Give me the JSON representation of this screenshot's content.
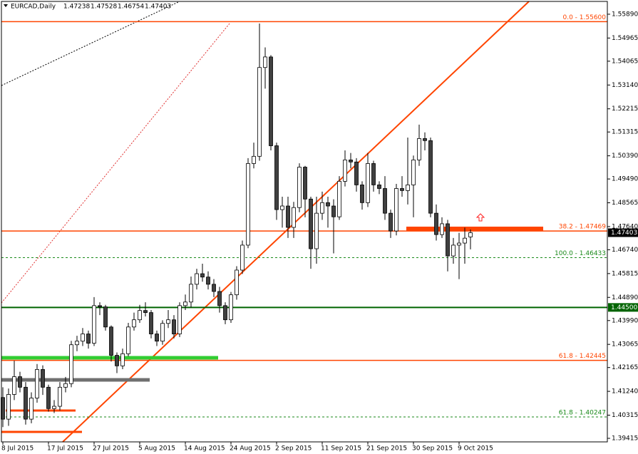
{
  "chart_data": {
    "type": "candlestick",
    "title": "EURCAD,Daily",
    "categories": [
      "8 Jul 2015",
      null,
      null,
      null,
      null,
      null,
      null,
      null,
      "17 Jul 2015",
      null,
      null,
      null,
      null,
      null,
      null,
      null,
      "27 Jul 2015",
      null,
      null,
      null,
      null,
      null,
      null,
      null,
      "5 Aug 2015",
      null,
      null,
      null,
      null,
      null,
      null,
      null,
      "14 Aug 2015",
      null,
      null,
      null,
      null,
      null,
      null,
      null,
      "24 Aug 2015",
      null,
      null,
      null,
      null,
      null,
      null,
      null,
      "2 Sep 2015",
      null,
      null,
      null,
      null,
      null,
      null,
      null,
      "11 Sep 2015",
      null,
      null,
      null,
      null,
      null,
      null,
      null,
      "21 Sep 2015",
      null,
      null,
      null,
      null,
      null,
      null,
      null,
      "30 Sep 2015",
      null,
      null,
      null,
      null,
      null,
      null,
      null,
      "9 Oct 2015",
      null,
      null
    ],
    "open": [
      1.41,
      1.4016,
      1.4112,
      1.4181,
      1.414,
      1.4016,
      1.4098,
      1.4209,
      1.414,
      1.4057,
      1.4066,
      1.414,
      1.4154,
      1.4305,
      1.4319,
      1.4347,
      1.4311,
      1.4457,
      1.4452,
      1.4374,
      1.4264,
      1.4223,
      1.427,
      1.4374,
      1.4402,
      1.4438,
      1.443,
      1.4347,
      1.4319,
      1.4388,
      1.4402,
      1.4347,
      1.4457,
      1.4471,
      1.454,
      1.4581,
      1.4568,
      1.454,
      1.4512,
      1.4457,
      1.4402,
      1.4499,
      1.4595,
      1.4692,
      1.5009,
      1.5037,
      1.5382,
      1.5423,
      1.5078,
      1.483,
      1.4844,
      1.4761,
      1.4838,
      1.4995,
      1.4871,
      1.4678,
      1.4816,
      1.4857,
      1.4844,
      1.4802,
      1.494,
      1.5023,
      1.5015,
      1.4926,
      1.4857,
      1.5009,
      1.4926,
      1.4912,
      1.4816,
      1.4747,
      1.4912,
      1.4904,
      1.4926,
      1.5023,
      1.5106,
      1.5098,
      1.4816,
      1.4733,
      1.4775,
      1.465,
      1.4692,
      1.47,
      1.47238
    ],
    "high": [
      1.414,
      1.4135,
      1.4243,
      1.42,
      1.416,
      1.412,
      1.423,
      1.4225,
      1.415,
      1.409,
      1.416,
      1.418,
      1.432,
      1.434,
      1.437,
      1.436,
      1.449,
      1.447,
      1.446,
      1.438,
      1.4275,
      1.429,
      1.439,
      1.443,
      1.446,
      1.447,
      1.444,
      1.436,
      1.44,
      1.444,
      1.442,
      1.447,
      1.45,
      1.457,
      1.46,
      1.462,
      1.459,
      1.456,
      1.453,
      1.447,
      1.451,
      1.461,
      1.471,
      1.503,
      1.509,
      1.5553,
      1.546,
      1.543,
      1.509,
      1.488,
      1.488,
      1.486,
      1.501,
      1.5,
      1.488,
      1.488,
      1.49,
      1.488,
      1.487,
      1.496,
      1.506,
      1.505,
      1.503,
      1.494,
      1.505,
      1.502,
      1.494,
      1.496,
      1.483,
      1.493,
      1.496,
      1.511,
      1.504,
      1.516,
      1.513,
      1.511,
      1.485,
      1.48,
      1.479,
      1.472,
      1.474,
      1.476,
      1.47528
    ],
    "low": [
      1.3985,
      1.399,
      1.409,
      1.412,
      1.3995,
      1.4,
      1.408,
      1.411,
      1.4045,
      1.404,
      1.405,
      1.412,
      1.414,
      1.428,
      1.43,
      1.429,
      1.43,
      1.442,
      1.436,
      1.424,
      1.4195,
      1.421,
      1.426,
      1.436,
      1.439,
      1.4415,
      1.433,
      1.43,
      1.4305,
      1.437,
      1.433,
      1.4335,
      1.444,
      1.445,
      1.452,
      1.455,
      1.452,
      1.449,
      1.443,
      1.4385,
      1.439,
      1.448,
      1.458,
      1.468,
      1.499,
      1.502,
      1.53,
      1.506,
      1.479,
      1.476,
      1.472,
      1.472,
      1.482,
      1.48,
      1.46,
      1.462,
      1.479,
      1.476,
      1.466,
      1.479,
      1.492,
      1.499,
      1.49,
      1.483,
      1.484,
      1.49,
      1.489,
      1.479,
      1.472,
      1.473,
      1.488,
      1.485,
      1.48,
      1.5,
      1.506,
      1.48,
      1.471,
      1.472,
      1.459,
      1.462,
      1.456,
      1.462,
      1.46754
    ],
    "close": [
      1.4016,
      1.4112,
      1.4181,
      1.414,
      1.4016,
      1.4098,
      1.4209,
      1.414,
      1.4057,
      1.4066,
      1.414,
      1.4154,
      1.4305,
      1.4319,
      1.4347,
      1.4311,
      1.4457,
      1.4452,
      1.4374,
      1.4264,
      1.4223,
      1.427,
      1.4374,
      1.4402,
      1.4438,
      1.443,
      1.4347,
      1.4319,
      1.4388,
      1.4402,
      1.4347,
      1.4457,
      1.4471,
      1.454,
      1.4581,
      1.4568,
      1.454,
      1.4512,
      1.4457,
      1.4402,
      1.4499,
      1.4595,
      1.4692,
      1.5009,
      1.5037,
      1.5382,
      1.5423,
      1.5078,
      1.483,
      1.4844,
      1.4761,
      1.4838,
      1.4995,
      1.4871,
      1.4678,
      1.4816,
      1.4857,
      1.4844,
      1.4802,
      1.494,
      1.5023,
      1.5015,
      1.4926,
      1.4857,
      1.5009,
      1.4926,
      1.4912,
      1.4816,
      1.4747,
      1.4912,
      1.4904,
      1.4926,
      1.5023,
      1.5106,
      1.5098,
      1.4816,
      1.4733,
      1.4775,
      1.465,
      1.4692,
      1.47,
      1.4719,
      1.47403
    ],
    "up_color": "#ffffff",
    "down_color": "#404040",
    "ylim": [
      1.39277,
      1.56387
    ],
    "yticks": [
      {
        "value": 1.5589,
        "label": "1.55890"
      },
      {
        "value": 1.54965,
        "label": "1.54965"
      },
      {
        "value": 1.54065,
        "label": "1.54065"
      },
      {
        "value": 1.5314,
        "label": "1.53140"
      },
      {
        "value": 1.52215,
        "label": "1.52215"
      },
      {
        "value": 1.51315,
        "label": "1.51315"
      },
      {
        "value": 1.5039,
        "label": "1.50390"
      },
      {
        "value": 1.4949,
        "label": "1.49490"
      },
      {
        "value": 1.48565,
        "label": "1.48565"
      },
      {
        "value": 1.4764,
        "label": "1.47640"
      },
      {
        "value": 1.4674,
        "label": "1.46740"
      },
      {
        "value": 1.45815,
        "label": "1.45815"
      },
      {
        "value": 1.4489,
        "label": "1.44890"
      },
      {
        "value": 1.4399,
        "label": "1.43990"
      },
      {
        "value": 1.43065,
        "label": "1.43065"
      },
      {
        "value": 1.42165,
        "label": "1.42165"
      },
      {
        "value": 1.4124,
        "label": "1.41240"
      },
      {
        "value": 1.40315,
        "label": "1.40315"
      },
      {
        "value": 1.39415,
        "label": "1.39415"
      }
    ],
    "levels": [
      {
        "value": 1.556,
        "label": "0.0 - 1.55600",
        "color": "#ff4500",
        "style": "solid"
      },
      {
        "value": 1.47469,
        "label": "38.2 - 1.47469",
        "color": "#ff4500",
        "style": "solid"
      },
      {
        "value": 1.46433,
        "label": "100.0 - 1.46433",
        "color": "#1a8a1a",
        "style": "dash"
      },
      {
        "value": 1.42445,
        "label": "61.8 - 1.42445",
        "color": "#ff4500",
        "style": "solid"
      },
      {
        "value": 1.40247,
        "label": "61.8 - 1.40247",
        "color": "#1a8a1a",
        "style": "dash"
      }
    ],
    "price_lines": [
      {
        "value": 1.445,
        "label": "1.44500",
        "color": "#006400"
      }
    ]
  }
}
